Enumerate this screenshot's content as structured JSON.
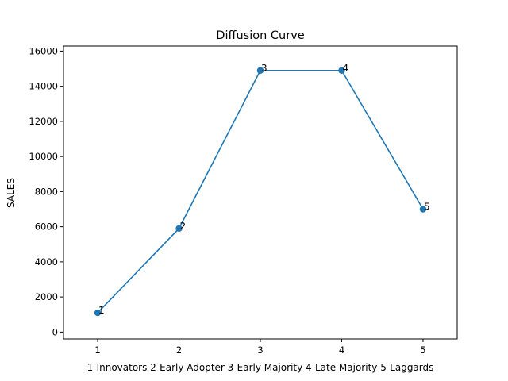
{
  "chart_data": {
    "type": "line",
    "title": "Diffusion Curve",
    "xlabel": "1-Innovators 2-Early Adopter 3-Early Majority 4-Late Majority 5-Laggards",
    "ylabel": "SALES",
    "x": [
      1,
      2,
      3,
      4,
      5
    ],
    "values": [
      1100,
      5900,
      14900,
      14900,
      7000
    ],
    "point_labels": [
      "1",
      "2",
      "3",
      "4",
      "5"
    ],
    "xticks": [
      "1",
      "2",
      "3",
      "4",
      "5"
    ],
    "yticks": [
      "0",
      "2000",
      "4000",
      "6000",
      "8000",
      "10000",
      "12000",
      "14000",
      "16000"
    ],
    "xlim": [
      0.58,
      5.42
    ],
    "ylim": [
      -390,
      16290
    ],
    "grid": false,
    "legend": "none",
    "colors": {
      "series": "#1f77b4",
      "axes": "#000000"
    }
  }
}
